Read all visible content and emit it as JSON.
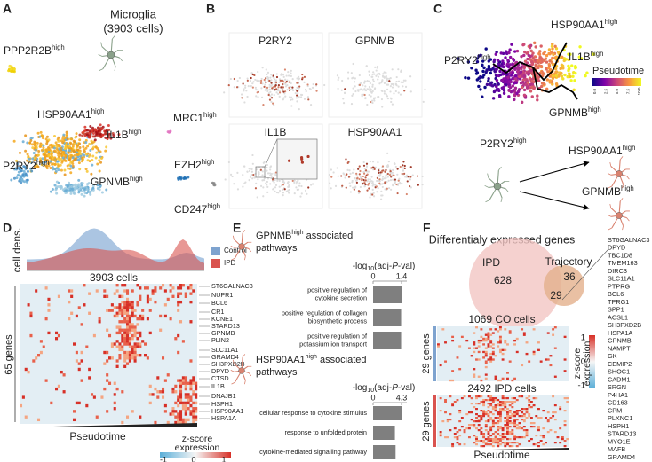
{
  "panel_a": {
    "letter": "A",
    "title": "Microglia",
    "subtitle": "(3903 cells)",
    "clusters": [
      {
        "name": "PPP2R2B",
        "sup": "high"
      },
      {
        "name": "HSP90AA1",
        "sup": "high"
      },
      {
        "name": "IL1B",
        "sup": "high"
      },
      {
        "name": "MRC1",
        "sup": "high"
      },
      {
        "name": "P2RY2",
        "sup": "high"
      },
      {
        "name": "GPNMB",
        "sup": "high"
      },
      {
        "name": "EZH2",
        "sup": "high"
      },
      {
        "name": "CD247",
        "sup": "high"
      }
    ]
  },
  "panel_b": {
    "letter": "B",
    "genes": [
      "P2RY2",
      "GPNMB",
      "IL1B",
      "HSP90AA1"
    ]
  },
  "panel_c": {
    "letter": "C",
    "clusters": [
      {
        "name": "HSP90AA1",
        "sup": "high"
      },
      {
        "name": "P2RY2",
        "sup": "high"
      },
      {
        "name": "IL1B",
        "sup": "high"
      },
      {
        "name": "GPNMB",
        "sup": "high"
      }
    ],
    "legend_title": "Pseudotime",
    "legend_ticks": [
      "0.0",
      "2.5",
      "5.0",
      "7.5",
      "10.0"
    ],
    "trajectory": {
      "source": {
        "name": "P2RY2",
        "sup": "high"
      },
      "targets": [
        {
          "name": "HSP90AA1",
          "sup": "high"
        },
        {
          "name": "GPNMB",
          "sup": "high"
        }
      ]
    }
  },
  "panel_d": {
    "letter": "D",
    "density_label": "cell dens.",
    "legend": [
      "Control",
      "IPD"
    ],
    "cells_label": "3903 cells",
    "genes_label": "65 genes",
    "genes": [
      "ST6GALNAC3",
      "NUPR1",
      "BCL6",
      "CR1",
      "KCNE1",
      "STARD13",
      "GPNMB",
      "PLIN2",
      "SLC11A1",
      "GRAMD4",
      "SH3PXD2B",
      "DPYD",
      "CTSD",
      "IL1B",
      "DNAJB1",
      "HSPH1",
      "HSP90AA1",
      "HSPA1A"
    ],
    "x_label": "Pseudotime",
    "scale_title": [
      "z-score",
      "expression"
    ],
    "scale_ticks": [
      "-1",
      "0",
      "1"
    ]
  },
  "panel_e": {
    "letter": "E",
    "groups": [
      {
        "title": {
          "name": "GPNMB",
          "sup": "high",
          "rest": " associated",
          "line2": "pathways"
        },
        "axis_label": {
          "pre": "-log",
          "sub": "10",
          "mid": "(adj-",
          "italic": "P",
          "post": "-val)"
        },
        "xlim": [
          0,
          1.4
        ],
        "xticks": [
          0,
          1.4
        ],
        "pathways": [
          [
            "positive regulation of",
            "cytokine secretion"
          ],
          [
            "positive regulation of collagen",
            "biosynthetic process"
          ],
          [
            "positive regulation of",
            "potassium ion transport"
          ]
        ],
        "values": [
          1.4,
          1.38,
          1.38
        ]
      },
      {
        "title": {
          "name": "HSP90AA1",
          "sup": "high",
          "rest": " associated",
          "line2": "pathways"
        },
        "axis_label": {
          "pre": "-log",
          "sub": "10",
          "mid": "(adj-",
          "italic": "P",
          "post": "-val)"
        },
        "xlim": [
          0,
          4.3
        ],
        "xticks": [
          0,
          4.3
        ],
        "pathways": [
          [
            "cellular response to cytokine stimulus"
          ],
          [
            "response to unfolded protein"
          ],
          [
            "cytokine-mediated signalling pathway"
          ]
        ],
        "values": [
          4.4,
          3.3,
          3.4
        ]
      }
    ]
  },
  "panel_f": {
    "letter": "F",
    "title": "Differentialy expressed genes",
    "venn": {
      "left_label": "IPD",
      "right_label": "Trajectory",
      "left_only": "628",
      "right_only": "36",
      "overlap": "29"
    },
    "co_label": "1069 CO cells",
    "ipd_label": "2492 IPD cells",
    "genes_label": "29 genes",
    "x_label": "Pseudotime",
    "scale_title": [
      "z-score",
      "expression"
    ],
    "scale_ticks": [
      "1",
      "0",
      "-1"
    ],
    "genes": [
      "ST6GALNAC3",
      "DPYD",
      "TBC1D8",
      "TMEM163",
      "DIRC3",
      "SLC11A1",
      "PTPRG",
      "BCL6",
      "TPRG1",
      "SPP1",
      "ACSL1",
      "SH3PXD2B",
      "HSPA1A",
      "GPNMB",
      "NAMPT",
      "GK",
      "CEMIP2",
      "SHOC1",
      "CADM1",
      "SRGN",
      "P4HA1",
      "CD163",
      "CPM",
      "PLXNC1",
      "HSPH1",
      "STARD13",
      "MYO1E",
      "MAFB",
      "GRAMD4"
    ]
  }
}
